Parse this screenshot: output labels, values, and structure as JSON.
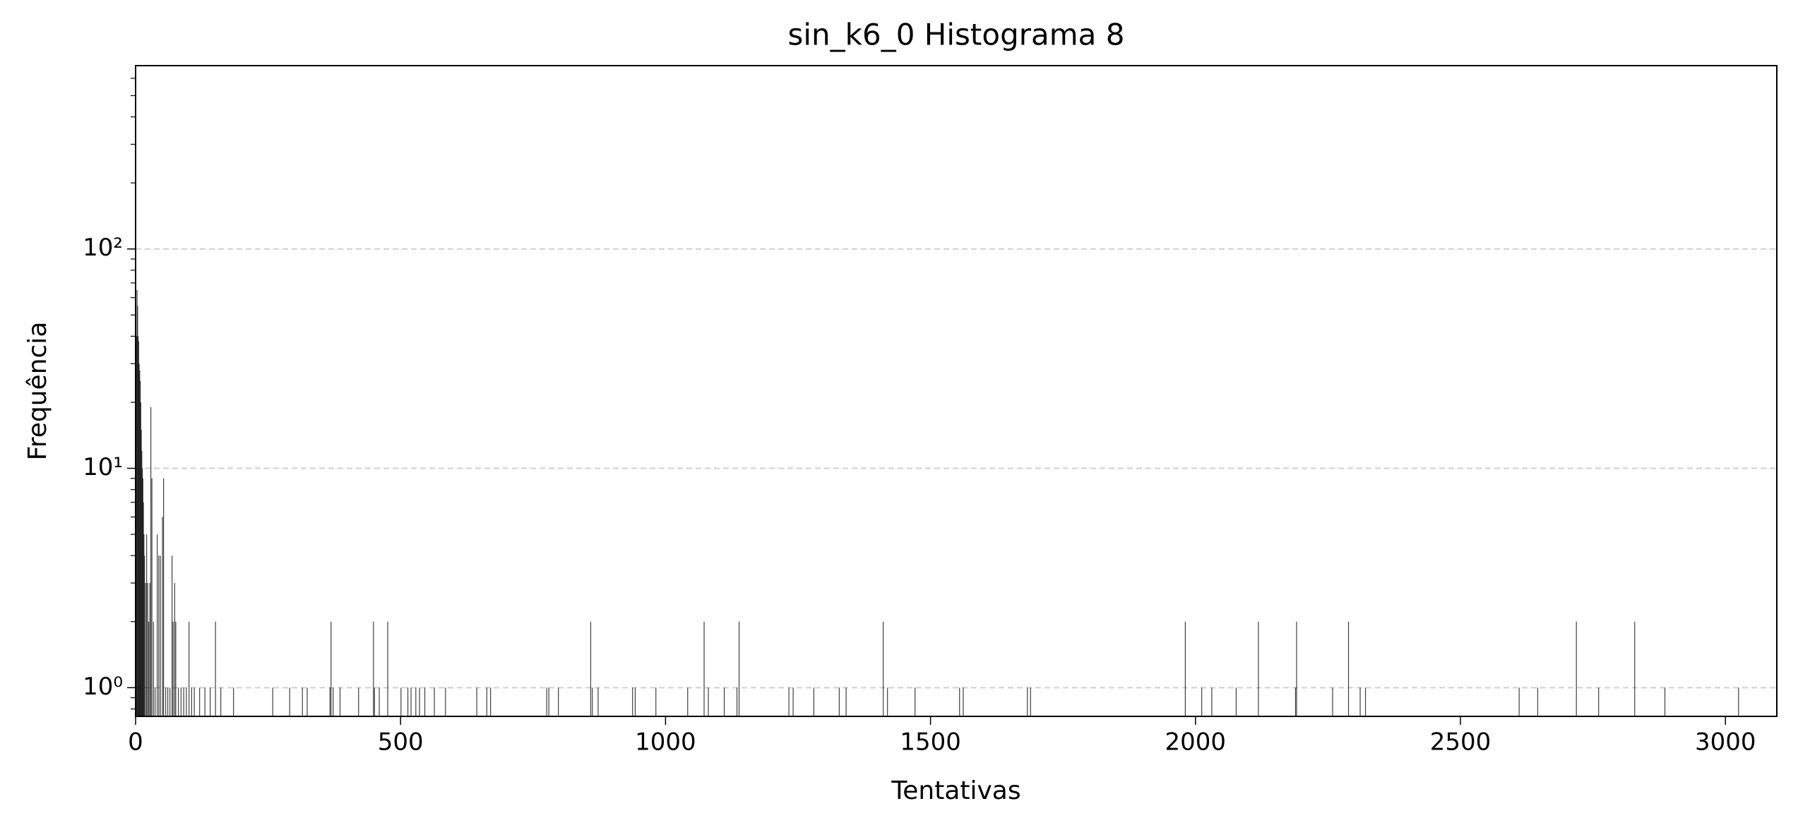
{
  "chart_data": {
    "type": "bar",
    "title": "sin_k6_0 Histograma 8",
    "x_label": "Tentativas",
    "y_label": "Frequência",
    "color": "#000000",
    "log_y": true,
    "grid": true,
    "xlim": [
      0,
      3097
    ],
    "ylim": [
      0.74,
      685
    ],
    "xticks": [
      0,
      500,
      1000,
      1500,
      2000,
      2500,
      3000
    ],
    "yticks": [
      {
        "value": 1,
        "label": "10⁰"
      },
      {
        "value": 10,
        "label": "10¹"
      },
      {
        "value": 100,
        "label": "10²"
      }
    ],
    "minor_yticks": [
      0.8,
      0.9,
      2,
      3,
      4,
      5,
      6,
      7,
      8,
      9,
      20,
      30,
      40,
      50,
      60,
      70,
      80,
      90,
      200,
      300,
      400,
      500,
      600
    ],
    "x": [
      1,
      2,
      3,
      4,
      5,
      6,
      7,
      8,
      9,
      10,
      11,
      12,
      13,
      14,
      15,
      16,
      18,
      20,
      22,
      24,
      26,
      28,
      30,
      33,
      36,
      40,
      43,
      46,
      50,
      52,
      56,
      60,
      64,
      68,
      70,
      73,
      75,
      80,
      85,
      90,
      95,
      100,
      105,
      110,
      120,
      130,
      140,
      150,
      160,
      184,
      258,
      290,
      314,
      323,
      366,
      368,
      372,
      385,
      420,
      448,
      450,
      459,
      475,
      500,
      513,
      519,
      528,
      535,
      545,
      563,
      584,
      643,
      662,
      669,
      775,
      779,
      797,
      858,
      861,
      872,
      937,
      942,
      981,
      1041,
      1072,
      1080,
      1110,
      1134,
      1138,
      1232,
      1240,
      1279,
      1327,
      1340,
      1410,
      1418,
      1470,
      1554,
      1561,
      1682,
      1688,
      1980,
      2011,
      2030,
      2076,
      2118,
      2188,
      2190,
      2258,
      2288,
      2310,
      2320,
      2610,
      2645,
      2718,
      2760,
      2828,
      2885,
      3024
    ],
    "values": [
      40,
      65,
      55,
      40,
      38,
      30,
      28,
      25,
      20,
      15,
      12,
      10,
      9,
      7,
      5,
      4,
      3,
      5,
      3,
      2,
      3,
      19,
      9,
      2,
      1,
      5,
      4,
      4,
      6,
      9,
      1,
      1,
      1,
      4,
      2,
      3,
      2,
      1,
      1,
      1,
      1,
      2,
      1,
      1,
      1,
      1,
      1,
      2,
      1,
      1,
      1,
      1,
      1,
      1,
      1,
      2,
      1,
      1,
      1,
      2,
      1,
      1,
      2,
      1,
      1,
      1,
      1,
      1,
      1,
      1,
      1,
      1,
      1,
      1,
      1,
      1,
      1,
      2,
      1,
      1,
      1,
      1,
      1,
      1,
      2,
      1,
      1,
      1,
      2,
      1,
      1,
      1,
      1,
      1,
      2,
      1,
      1,
      1,
      1,
      1,
      1,
      2,
      1,
      1,
      1,
      2,
      1,
      2,
      1,
      2,
      1,
      1,
      1,
      1,
      2,
      1,
      2,
      1,
      1
    ]
  }
}
